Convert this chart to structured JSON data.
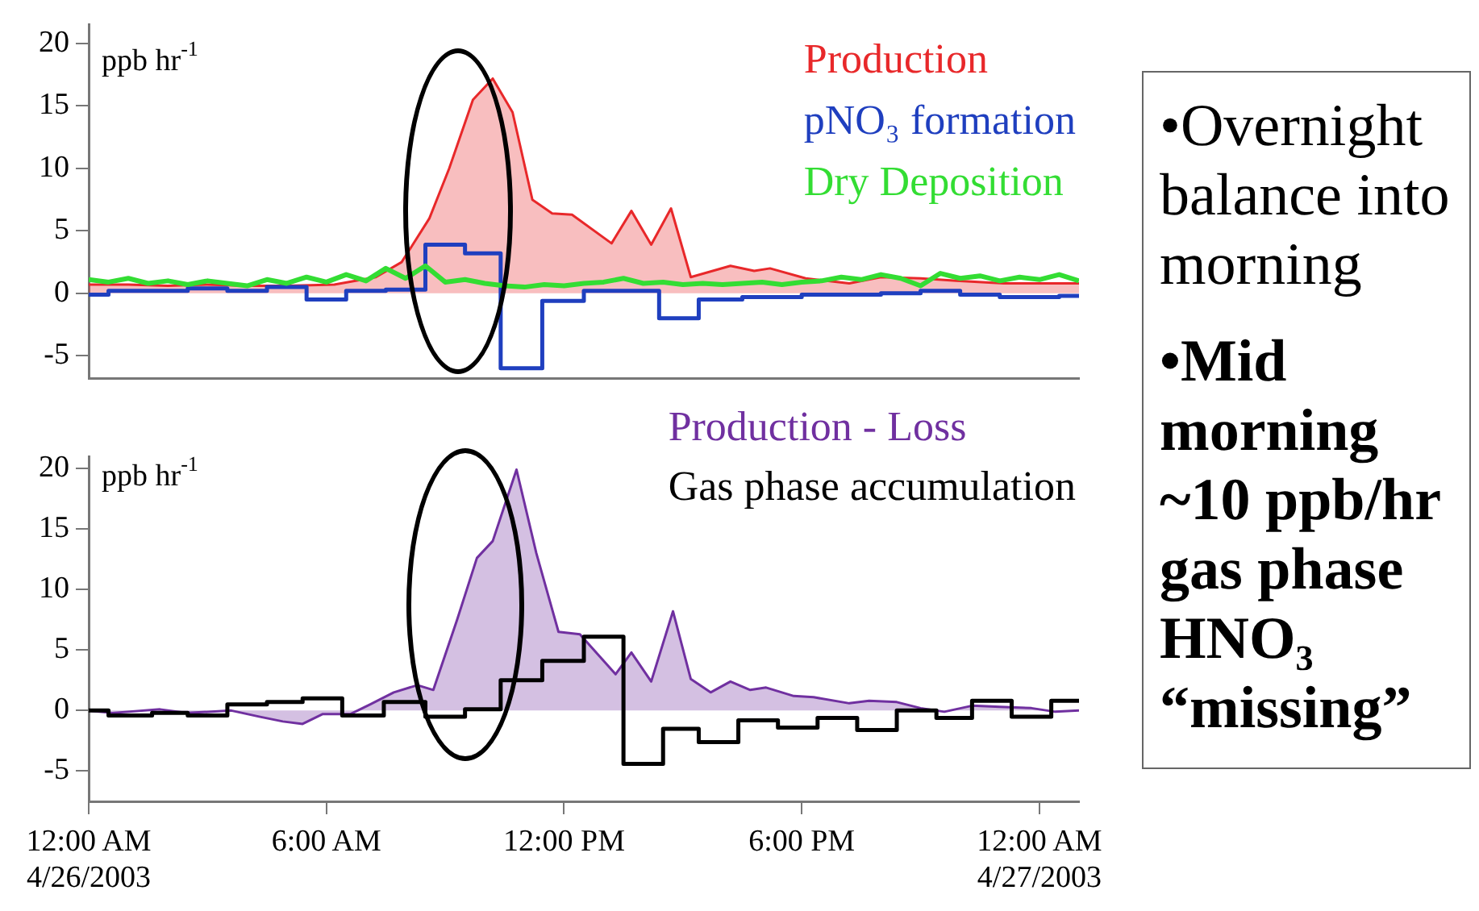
{
  "chart_data": [
    {
      "type": "area",
      "ylabel": "ppb hr$^{-1}$",
      "xlim": [
        0,
        25
      ],
      "ylim": [
        -6.8,
        21.5
      ],
      "yticks": [
        -5,
        0,
        5,
        10,
        15,
        20
      ],
      "tick_labels": "y",
      "marker": "none",
      "annotations": [
        "•Overnight balance into morning",
        "•Mid morning ~10 ppb/hr gas phase HNO₃ “missing”"
      ],
      "series": [
        {
          "name": "Production",
          "type": "area",
          "color": "#e8282a",
          "x": [
            0,
            1,
            2,
            3,
            4,
            5,
            6.2,
            7.25,
            7.9,
            8.6,
            9.1,
            9.7,
            10.2,
            10.7,
            11.2,
            11.7,
            12.2,
            13.2,
            13.7,
            14.2,
            14.7,
            15.2,
            16.2,
            16.8,
            17.2,
            18.1,
            19.2,
            20,
            21,
            21.9,
            23.1,
            25
          ],
          "values": [
            0.7,
            0.7,
            0.6,
            0.7,
            0.6,
            0.6,
            0.7,
            1.3,
            2.5,
            6,
            10,
            15.5,
            17.2,
            14.5,
            7.5,
            6.4,
            6.3,
            4,
            6.6,
            3.9,
            6.8,
            1.3,
            2.2,
            1.8,
            2,
            1.2,
            0.8,
            1.3,
            1.2,
            1,
            0.8,
            0.8
          ]
        },
        {
          "name": "pNO₃ formation",
          "type": "step",
          "color": "#1f3fbf",
          "x": [
            0,
            0.5,
            2.5,
            3.5,
            4.5,
            5.5,
            6.5,
            7.5,
            8.5,
            9.5,
            10.4,
            11.45,
            12.5,
            14.4,
            15.4,
            16.5,
            18,
            20,
            21,
            22,
            23,
            24.5,
            25
          ],
          "values": [
            -0.1,
            0.2,
            0.4,
            0.2,
            0.5,
            -0.5,
            0.2,
            0.3,
            3.9,
            3.2,
            -6,
            -0.6,
            0.2,
            -2,
            -0.5,
            -0.3,
            -0.1,
            0,
            0.2,
            -0.1,
            -0.3,
            -0.2,
            -0.2
          ]
        },
        {
          "name": "Dry Deposition",
          "type": "line",
          "color": "#33dd33",
          "x": [
            0,
            0.5,
            1,
            1.5,
            2,
            2.5,
            3,
            3.5,
            4,
            4.5,
            5,
            5.5,
            6,
            6.5,
            7,
            7.5,
            8,
            8.5,
            9,
            9.5,
            10,
            10.5,
            11,
            11.5,
            12,
            12.5,
            13,
            13.5,
            14,
            14.5,
            15,
            15.5,
            16,
            16.5,
            17,
            17.5,
            18,
            18.5,
            19,
            19.5,
            20,
            20.5,
            21,
            21.5,
            22,
            22.5,
            23,
            23.5,
            24,
            24.5,
            25
          ],
          "values": [
            1.1,
            0.9,
            1.2,
            0.8,
            1,
            0.7,
            1,
            0.8,
            0.6,
            1.1,
            0.8,
            1.3,
            0.9,
            1.5,
            1,
            2,
            1.2,
            2.2,
            0.9,
            1.1,
            0.8,
            0.6,
            0.5,
            0.7,
            0.6,
            0.8,
            0.9,
            1.2,
            0.8,
            0.9,
            0.7,
            0.8,
            0.7,
            0.8,
            0.9,
            0.7,
            0.9,
            1,
            1.3,
            1.1,
            1.5,
            1.2,
            0.6,
            1.6,
            1.2,
            1.4,
            1,
            1.3,
            1.1,
            1.5,
            1
          ]
        }
      ]
    },
    {
      "type": "area",
      "ylabel": "ppb hr$^{-1}$",
      "xlim": [
        0,
        25
      ],
      "ylim": [
        -7.5,
        21
      ],
      "yticks": [
        -5,
        0,
        5,
        10,
        15,
        20
      ],
      "marker": "none",
      "xticks": [
        {
          "value": 0,
          "label": "12:00 AM\n4/26/2003"
        },
        {
          "value": 6,
          "label": "6:00 AM"
        },
        {
          "value": 12,
          "label": "12:00 PM"
        },
        {
          "value": 18,
          "label": "6:00 PM"
        },
        {
          "value": 24,
          "label": "12:00 AM\n4/27/2003"
        }
      ],
      "series": [
        {
          "name": "Production - Loss",
          "type": "area",
          "color": "#7030a0",
          "x": [
            0,
            0.6,
            1.8,
            2.5,
            3.6,
            4.3,
            4.9,
            5.4,
            5.9,
            6.6,
            7.1,
            7.7,
            8.3,
            8.7,
            9.3,
            9.8,
            10.2,
            10.8,
            11.3,
            11.86,
            12.4,
            13.3,
            13.7,
            14.2,
            14.75,
            15.2,
            15.7,
            16.2,
            16.7,
            17.1,
            17.8,
            18.3,
            19.2,
            19.7,
            20.4,
            21,
            21.6,
            22.3,
            23,
            23.8,
            24.4,
            25
          ],
          "values": [
            0,
            -0.2,
            0.1,
            -0.2,
            0,
            -0.5,
            -0.9,
            -1.1,
            -0.3,
            -0.3,
            0.5,
            1.5,
            2.1,
            1.7,
            7.5,
            12.6,
            14,
            19.9,
            13,
            6.5,
            6.3,
            3,
            4.8,
            2.4,
            8.2,
            2.6,
            1.5,
            2.4,
            1.7,
            1.9,
            1.2,
            1.1,
            0.6,
            0.8,
            0.7,
            0.2,
            -0.1,
            0.4,
            0.3,
            0.2,
            -0.1,
            0
          ]
        },
        {
          "name": "Gas phase accumulation",
          "type": "step",
          "color": "#000000",
          "x": [
            0,
            0.5,
            1.6,
            2.5,
            3.5,
            4.5,
            5.4,
            6.4,
            7.45,
            8.5,
            9.5,
            10.4,
            11.45,
            12.5,
            13.5,
            14.5,
            15.4,
            16.4,
            17.4,
            18.4,
            19.4,
            20.4,
            21.4,
            22.3,
            23.3,
            24.3,
            25
          ],
          "values": [
            0,
            -0.4,
            -0.2,
            -0.4,
            0.5,
            0.7,
            1,
            -0.4,
            0.7,
            -0.5,
            0.1,
            2.5,
            4.1,
            6.1,
            -4.4,
            -1.5,
            -2.6,
            -0.8,
            -1.4,
            -0.6,
            -1.6,
            0,
            -0.6,
            0.8,
            -0.5,
            0.8,
            0.8
          ]
        }
      ]
    }
  ]
}
